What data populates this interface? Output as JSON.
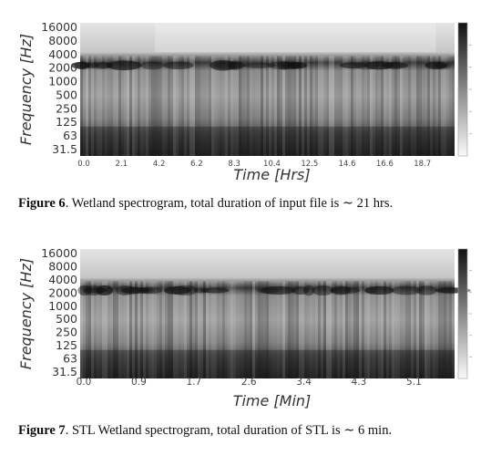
{
  "figures": [
    {
      "caption_label": "Figure 6",
      "caption_text": ". Wetland spectrogram, total duration of input file is ∼ 21 hrs.",
      "chart_data": {
        "type": "heatmap",
        "title": "",
        "xlabel": "Time [Hrs]",
        "ylabel": "Frequency [Hz]",
        "x_ticks": [
          "0.0",
          "2.1",
          "4.2",
          "6.2",
          "8.3",
          "10.4",
          "12.5",
          "14.6",
          "16.6",
          "18.7"
        ],
        "y_ticks": [
          "16000",
          "8000",
          "4000",
          "2000",
          "1000",
          "500",
          "250",
          "125",
          "63",
          "31.5"
        ],
        "y_scale": "log",
        "x_range": [
          0,
          21
        ],
        "colormap": "gray_r",
        "colorbar": true,
        "grid": false
      }
    },
    {
      "caption_label": "Figure 7",
      "caption_text": ". STL Wetland spectrogram, total duration of STL is ∼ 6 min.",
      "chart_data": {
        "type": "heatmap",
        "title": "",
        "xlabel": "Time [Min]",
        "ylabel": "Frequency [Hz]",
        "x_ticks": [
          "0.0",
          "0.9",
          "1.7",
          "2.6",
          "3.4",
          "4.3",
          "5.1"
        ],
        "y_ticks": [
          "16000",
          "8000",
          "4000",
          "2000",
          "1000",
          "500",
          "250",
          "125",
          "63",
          "31.5"
        ],
        "y_scale": "log",
        "x_range": [
          0,
          6
        ],
        "colormap": "gray_r",
        "colorbar": true,
        "grid": false
      }
    }
  ]
}
